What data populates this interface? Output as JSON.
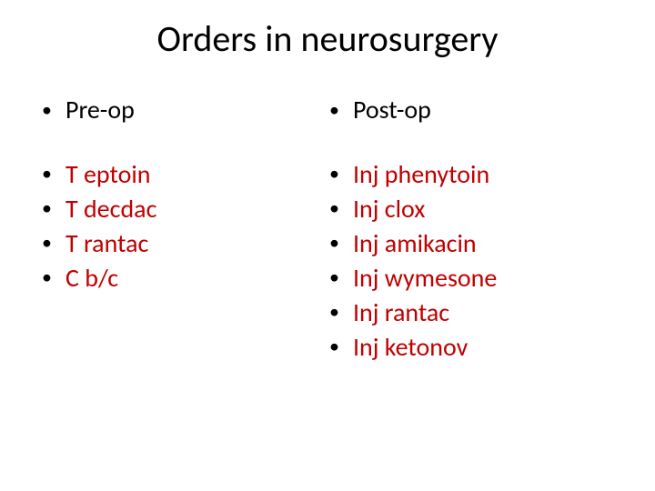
{
  "title": "Orders in neurosurgery",
  "colors": {
    "background": "#ffffff",
    "heading_text": "#000000",
    "item_text": "#c00000",
    "bullet": "#000000"
  },
  "typography": {
    "title_fontsize": 40,
    "heading_fontsize": 28,
    "item_fontsize": 28,
    "font_family": "Calibri"
  },
  "left": {
    "heading": "Pre-op",
    "items": [
      "T eptoin",
      "T decdac",
      "T rantac",
      "C b/c"
    ]
  },
  "right": {
    "heading": "Post-op",
    "items": [
      "Inj phenytoin",
      "Inj clox",
      "Inj amikacin",
      "Inj wymesone",
      "Inj rantac",
      "Inj ketonov"
    ]
  }
}
